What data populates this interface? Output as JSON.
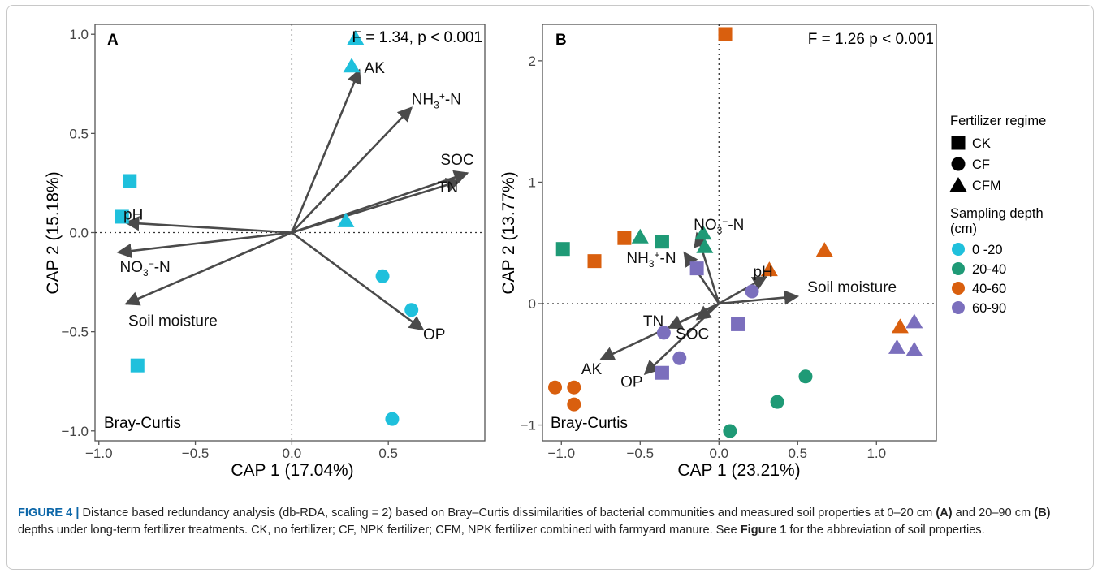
{
  "colors": {
    "0 -20": "#1fc0dc",
    "20-40": "#1f9a76",
    "40-60": "#d95f0e",
    "60-90": "#7b6fbd",
    "arrow": "#4a4a4a",
    "caption_label": "#0b66a8"
  },
  "legend": {
    "shape_title": "Fertilizer regime",
    "shapes": [
      {
        "label": "CK",
        "shape": "square"
      },
      {
        "label": "CF",
        "shape": "circle"
      },
      {
        "label": "CFM",
        "shape": "triangle"
      }
    ],
    "depth_title_line1": "Sampling depth",
    "depth_title_line2": "(cm)",
    "depths": [
      "0 -20",
      "20-40",
      "40-60",
      "60-90"
    ]
  },
  "caption": {
    "figure_label": "FIGURE 4 |",
    "text_1": " Distance based redundancy analysis (db-RDA, scaling = 2) based on Bray–Curtis dissimilarities of bacterial communities and measured soil properties at 0–20 cm ",
    "label_a": "(A)",
    "text_2": " and 20–90 cm ",
    "label_b": "(B)",
    "text_3": " depths under long-term fertilizer treatments. CK, no fertilizer; CF, NPK fertilizer; CFM, NPK fertilizer combined with farmyard manure. See ",
    "figure_ref": "Figure 1",
    "text_4": " for the abbreviation of soil properties."
  },
  "chart_data": [
    {
      "type": "scatter",
      "panel": "A",
      "stat": "F = 1.34, p < 0.001",
      "distance": "Bray-Curtis",
      "xlabel": "CAP 1 (17.04%)",
      "ylabel": "CAP 2 (15.18%)",
      "xlim": [
        -1.02,
        1.0
      ],
      "ylim": [
        -1.05,
        1.05
      ],
      "xticks": [
        -1.0,
        -0.5,
        0.0,
        0.5
      ],
      "xtick_labels": [
        "−1.0",
        "−0.5",
        "0.0",
        "0.5"
      ],
      "yticks": [
        -1.0,
        -0.5,
        0.0,
        0.5,
        1.0
      ],
      "ytick_labels": [
        "−1.0",
        "−0.5",
        "0.0",
        "0.5",
        "1.0"
      ],
      "points": [
        {
          "regime": "CFM",
          "depth": "0 -20",
          "x": 0.33,
          "y": 0.98
        },
        {
          "regime": "CFM",
          "depth": "0 -20",
          "x": 0.31,
          "y": 0.84
        },
        {
          "regime": "CFM",
          "depth": "0 -20",
          "x": 0.28,
          "y": 0.06
        },
        {
          "regime": "CK",
          "depth": "0 -20",
          "x": -0.84,
          "y": 0.26
        },
        {
          "regime": "CK",
          "depth": "0 -20",
          "x": -0.88,
          "y": 0.08
        },
        {
          "regime": "CK",
          "depth": "0 -20",
          "x": -0.8,
          "y": -0.67
        },
        {
          "regime": "CF",
          "depth": "0 -20",
          "x": 0.47,
          "y": -0.22
        },
        {
          "regime": "CF",
          "depth": "0 -20",
          "x": 0.62,
          "y": -0.39
        },
        {
          "regime": "CF",
          "depth": "0 -20",
          "x": 0.52,
          "y": -0.94
        }
      ],
      "vectors": [
        {
          "label": "AK",
          "x": 0.35,
          "y": 0.82
        },
        {
          "label": "NH3+-N",
          "x": 0.62,
          "y": 0.63
        },
        {
          "label": "SOC",
          "x": 0.91,
          "y": 0.3
        },
        {
          "label": "TN",
          "x": 0.87,
          "y": 0.26
        },
        {
          "label": "pH",
          "x": -0.86,
          "y": 0.05
        },
        {
          "label": "NO3−-N",
          "x": -0.9,
          "y": -0.1
        },
        {
          "label": "Soil moisture",
          "x": -0.86,
          "y": -0.36
        },
        {
          "label": "OP",
          "x": 0.68,
          "y": -0.49
        }
      ]
    },
    {
      "type": "scatter",
      "panel": "B",
      "stat": "F = 1.26 p < 0.001",
      "distance": "Bray-Curtis",
      "xlabel": "CAP 1 (23.21%)",
      "ylabel": "CAP 2 (13.77%)",
      "xlim": [
        -1.12,
        1.38
      ],
      "ylim": [
        -1.13,
        2.3
      ],
      "xticks": [
        -1.0,
        -0.5,
        0.0,
        0.5,
        1.0
      ],
      "xtick_labels": [
        "−1.0",
        "−0.5",
        "0.0",
        "0.5",
        "1.0"
      ],
      "yticks": [
        -1,
        0,
        1,
        2
      ],
      "ytick_labels": [
        "−1",
        "0",
        "1",
        "2"
      ],
      "points": [
        {
          "regime": "CK",
          "depth": "40-60",
          "x": 0.04,
          "y": 2.22
        },
        {
          "regime": "CK",
          "depth": "20-40",
          "x": -0.99,
          "y": 0.45
        },
        {
          "regime": "CK",
          "depth": "40-60",
          "x": -0.79,
          "y": 0.35
        },
        {
          "regime": "CK",
          "depth": "40-60",
          "x": -0.6,
          "y": 0.54
        },
        {
          "regime": "CK",
          "depth": "20-40",
          "x": -0.36,
          "y": 0.51
        },
        {
          "regime": "CK",
          "depth": "60-90",
          "x": -0.14,
          "y": 0.29
        },
        {
          "regime": "CK",
          "depth": "60-90",
          "x": 0.12,
          "y": -0.17
        },
        {
          "regime": "CK",
          "depth": "60-90",
          "x": -0.36,
          "y": -0.57
        },
        {
          "regime": "CFM",
          "depth": "20-40",
          "x": -0.5,
          "y": 0.55
        },
        {
          "regime": "CFM",
          "depth": "20-40",
          "x": -0.1,
          "y": 0.58
        },
        {
          "regime": "CFM",
          "depth": "20-40",
          "x": -0.09,
          "y": 0.47
        },
        {
          "regime": "CFM",
          "depth": "40-60",
          "x": 0.32,
          "y": 0.28
        },
        {
          "regime": "CFM",
          "depth": "40-60",
          "x": 0.67,
          "y": 0.44
        },
        {
          "regime": "CFM",
          "depth": "40-60",
          "x": 1.15,
          "y": -0.19
        },
        {
          "regime": "CFM",
          "depth": "60-90",
          "x": 1.24,
          "y": -0.15
        },
        {
          "regime": "CFM",
          "depth": "60-90",
          "x": 1.13,
          "y": -0.36
        },
        {
          "regime": "CFM",
          "depth": "60-90",
          "x": 1.24,
          "y": -0.38
        },
        {
          "regime": "CF",
          "depth": "60-90",
          "x": 0.21,
          "y": 0.1
        },
        {
          "regime": "CF",
          "depth": "60-90",
          "x": -0.35,
          "y": -0.24
        },
        {
          "regime": "CF",
          "depth": "60-90",
          "x": -0.25,
          "y": -0.45
        },
        {
          "regime": "CF",
          "depth": "40-60",
          "x": -1.04,
          "y": -0.69
        },
        {
          "regime": "CF",
          "depth": "40-60",
          "x": -0.92,
          "y": -0.69
        },
        {
          "regime": "CF",
          "depth": "40-60",
          "x": -0.92,
          "y": -0.83
        },
        {
          "regime": "CF",
          "depth": "20-40",
          "x": 0.55,
          "y": -0.6
        },
        {
          "regime": "CF",
          "depth": "20-40",
          "x": 0.37,
          "y": -0.81
        },
        {
          "regime": "CF",
          "depth": "20-40",
          "x": 0.07,
          "y": -1.05
        }
      ],
      "vectors": [
        {
          "label": "NO3−-N",
          "x": -0.14,
          "y": 0.58
        },
        {
          "label": "NH3+-N",
          "x": -0.22,
          "y": 0.42
        },
        {
          "label": "pH",
          "x": 0.3,
          "y": 0.22
        },
        {
          "label": "Soil moisture",
          "x": 0.5,
          "y": 0.06
        },
        {
          "label": "TN",
          "x": -0.32,
          "y": -0.2
        },
        {
          "label": "SOC",
          "x": -0.14,
          "y": -0.13
        },
        {
          "label": "AK",
          "x": -0.75,
          "y": -0.46
        },
        {
          "label": "OP",
          "x": -0.47,
          "y": -0.58
        }
      ]
    }
  ]
}
